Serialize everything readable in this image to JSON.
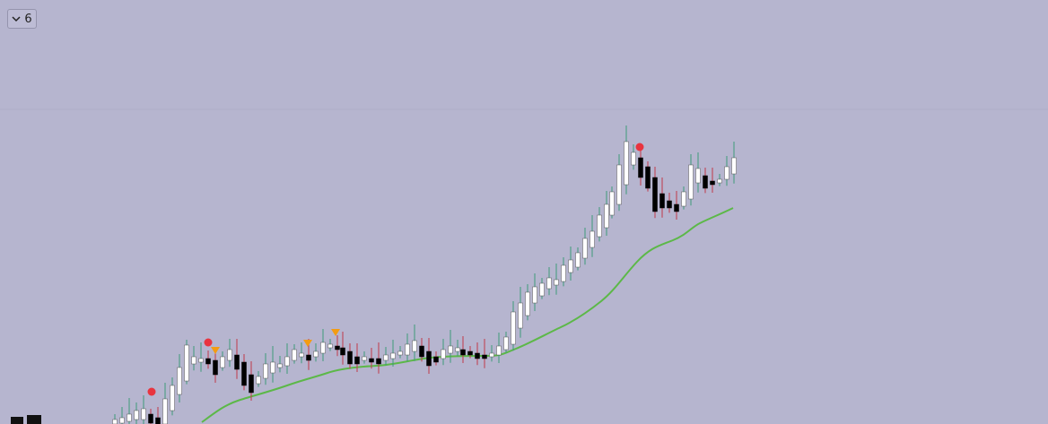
{
  "dropdown": {
    "label": "6"
  }
}
